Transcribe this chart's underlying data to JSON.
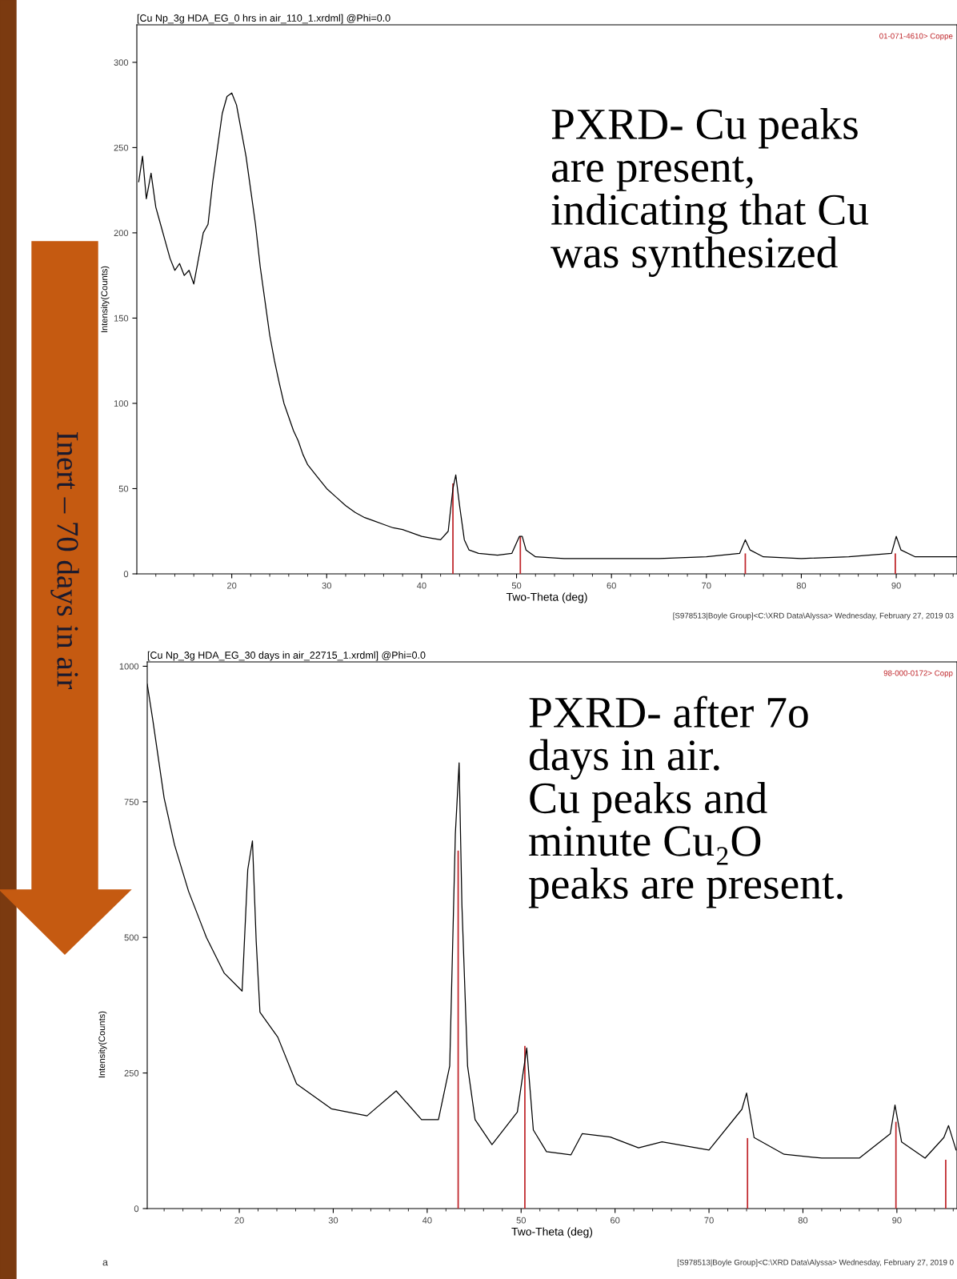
{
  "chart_data": [
    {
      "type": "line",
      "title": "[Cu Np_3g HDA_EG_0 hrs in air_110_1.xrdml] @Phi=0.0",
      "xlabel": "Two-Theta (deg)",
      "ylabel": "Intensity(Counts)",
      "grid": false,
      "marker": "none",
      "line_style": "solid",
      "xlim": [
        10,
        96.4
      ],
      "ylim": [
        0,
        322
      ],
      "xticks": [
        {
          "value": 12,
          "label": null
        },
        {
          "value": 14,
          "label": null
        },
        {
          "value": 16,
          "label": null
        },
        {
          "value": 18,
          "label": null
        },
        20,
        {
          "value": 22,
          "label": null
        },
        {
          "value": 24,
          "label": null
        },
        {
          "value": 26,
          "label": null
        },
        {
          "value": 28,
          "label": null
        },
        30,
        {
          "value": 32,
          "label": null
        },
        {
          "value": 34,
          "label": null
        },
        {
          "value": 36,
          "label": null
        },
        {
          "value": 38,
          "label": null
        },
        40,
        {
          "value": 42,
          "label": null
        },
        {
          "value": 44,
          "label": null
        },
        {
          "value": 46,
          "label": null
        },
        {
          "value": 48,
          "label": null
        },
        50,
        {
          "value": 52,
          "label": null
        },
        {
          "value": 54,
          "label": null
        },
        {
          "value": 56,
          "label": null
        },
        {
          "value": 58,
          "label": null
        },
        60,
        {
          "value": 62,
          "label": null
        },
        {
          "value": 64,
          "label": null
        },
        {
          "value": 66,
          "label": null
        },
        {
          "value": 68,
          "label": null
        },
        70,
        {
          "value": 72,
          "label": null
        },
        {
          "value": 74,
          "label": null
        },
        {
          "value": 76,
          "label": null
        },
        {
          "value": 78,
          "label": null
        },
        80,
        {
          "value": 82,
          "label": null
        },
        {
          "value": 84,
          "label": null
        },
        {
          "value": 86,
          "label": null
        },
        {
          "value": 88,
          "label": null
        },
        90,
        {
          "value": 92,
          "label": null
        },
        {
          "value": 94,
          "label": null
        },
        {
          "value": 96,
          "label": null
        }
      ],
      "yticks": [
        0,
        50,
        100,
        150,
        200,
        250,
        300
      ],
      "series": [
        {
          "color": "#000000",
          "x": [
            10.2,
            10.6,
            11,
            11.5,
            12,
            12.5,
            13,
            13.5,
            14,
            14.5,
            15,
            15.5,
            16,
            16.5,
            17,
            17.5,
            18,
            18.5,
            19,
            19.5,
            20,
            20.5,
            21,
            21.5,
            22,
            22.5,
            23,
            23.5,
            24,
            24.5,
            25,
            25.5,
            26,
            26.5,
            27,
            27.5,
            28,
            29,
            30,
            31,
            32,
            33,
            34,
            35,
            36,
            37,
            38,
            39,
            40,
            41,
            42,
            42.8,
            43.3,
            43.6,
            44,
            44.5,
            45,
            46,
            48,
            49.5,
            50.3,
            50.6,
            51,
            52,
            55,
            60,
            65,
            70,
            73.5,
            74.1,
            74.6,
            76,
            80,
            85,
            89.5,
            90,
            90.5,
            92,
            95,
            96.4
          ],
          "values": [
            230,
            245,
            220,
            235,
            215,
            205,
            195,
            185,
            178,
            182,
            175,
            178,
            170,
            185,
            200,
            205,
            230,
            250,
            270,
            280,
            282,
            275,
            260,
            245,
            225,
            205,
            180,
            160,
            140,
            125,
            112,
            100,
            92,
            84,
            78,
            70,
            64,
            57,
            50,
            45,
            40,
            36,
            33,
            31,
            29,
            27,
            26,
            24,
            22,
            21,
            20,
            25,
            50,
            58,
            40,
            20,
            14,
            12,
            11,
            12,
            22,
            22,
            14,
            10,
            9,
            9,
            9,
            10,
            12,
            20,
            14,
            10,
            9,
            10,
            12,
            22,
            14,
            10,
            10,
            10
          ]
        },
        {
          "type": "bar",
          "name": "01-071-4610> Coppe",
          "color": "#c0282d",
          "x": [
            43.3,
            50.4,
            74.1,
            89.9
          ],
          "values": [
            53,
            22,
            12,
            12
          ]
        }
      ],
      "annotations": [
        "PXRD- Cu peaks\nare present,\nindicating that Cu\nwas synthesized",
        "[S978513|Boyle Group]<C:\\XRD Data\\Alyssa> Wednesday, February 27, 2019 03"
      ]
    },
    {
      "type": "line",
      "title": "[Cu Np_3g HDA_EG_30 days in air_22715_1.xrdml] @Phi=0.0",
      "xlabel": "Two-Theta (deg)",
      "ylabel": "Intensity(Counts)",
      "grid": false,
      "marker": "none",
      "line_style": "solid",
      "xlim": [
        10.2,
        96.4
      ],
      "ylim": [
        0,
        1008
      ],
      "xticks": [
        {
          "value": 12,
          "label": null
        },
        {
          "value": 14,
          "label": null
        },
        {
          "value": 16,
          "label": null
        },
        {
          "value": 18,
          "label": null
        },
        20,
        {
          "value": 22,
          "label": null
        },
        {
          "value": 24,
          "label": null
        },
        {
          "value": 26,
          "label": null
        },
        {
          "value": 28,
          "label": null
        },
        30,
        {
          "value": 32,
          "label": null
        },
        {
          "value": 34,
          "label": null
        },
        {
          "value": 36,
          "label": null
        },
        {
          "value": 38,
          "label": null
        },
        40,
        {
          "value": 42,
          "label": null
        },
        {
          "value": 44,
          "label": null
        },
        {
          "value": 46,
          "label": null
        },
        {
          "value": 48,
          "label": null
        },
        50,
        {
          "value": 52,
          "label": null
        },
        {
          "value": 54,
          "label": null
        },
        {
          "value": 56,
          "label": null
        },
        {
          "value": 58,
          "label": null
        },
        60,
        {
          "value": 62,
          "label": null
        },
        {
          "value": 64,
          "label": null
        },
        {
          "value": 66,
          "label": null
        },
        {
          "value": 68,
          "label": null
        },
        70,
        {
          "value": 72,
          "label": null
        },
        {
          "value": 74,
          "label": null
        },
        {
          "value": 76,
          "label": null
        },
        {
          "value": 78,
          "label": null
        },
        80,
        {
          "value": 82,
          "label": null
        },
        {
          "value": 84,
          "label": null
        },
        {
          "value": 86,
          "label": null
        },
        {
          "value": 88,
          "label": null
        },
        90,
        {
          "value": 92,
          "label": null
        },
        {
          "value": 94,
          "label": null
        },
        {
          "value": 96,
          "label": null
        }
      ],
      "yticks": [
        0,
        250,
        500,
        750,
        1000
      ],
      "series": [
        {
          "color": "#000000",
          "x": [
            10.2,
            10.8,
            12.0,
            13.1,
            14.6,
            16.5,
            18.4,
            20.3,
            20.9,
            21.4,
            21.8,
            22.2,
            24.1,
            26.1,
            29.8,
            33.6,
            36.7,
            39.4,
            41.2,
            42.4,
            43.0,
            43.4,
            43.7,
            44.3,
            45.1,
            46.9,
            49.6,
            50.6,
            51.3,
            52.7,
            55.3,
            56.5,
            59.5,
            62.5,
            65,
            70,
            73.5,
            74,
            74.8,
            78,
            82,
            86,
            89.3,
            89.8,
            90.5,
            93,
            95,
            95.5,
            96.3
          ],
          "values": [
            967,
            900,
            757,
            671,
            585,
            500,
            434,
            401,
            625,
            678,
            493,
            362,
            316,
            230,
            184,
            171,
            217,
            164,
            164,
            263,
            691,
            822,
            559,
            263,
            164,
            118,
            178,
            296,
            145,
            105,
            99,
            138,
            132,
            112,
            123,
            108,
            183,
            213,
            131,
            100,
            93,
            93,
            138,
            191,
            123,
            93,
            131,
            153,
            108
          ]
        },
        {
          "type": "bar",
          "name": "98-000-0172> Copp",
          "color": "#c0282d",
          "x": [
            43.3,
            50.4,
            74.1,
            89.9,
            95.2
          ],
          "values": [
            660,
            300,
            130,
            160,
            90
          ]
        }
      ],
      "annotations": [
        "PXRD- after 7o\ndays in air.\nCu peaks and\nminute Cu₂O\npeaks are present.",
        "[S978513|Boyle Group]<C:\\XRD Data\\Alyssa> Wednesday, February 27, 2019 0",
        "a",
        "Inert – 70 days in air"
      ]
    }
  ]
}
